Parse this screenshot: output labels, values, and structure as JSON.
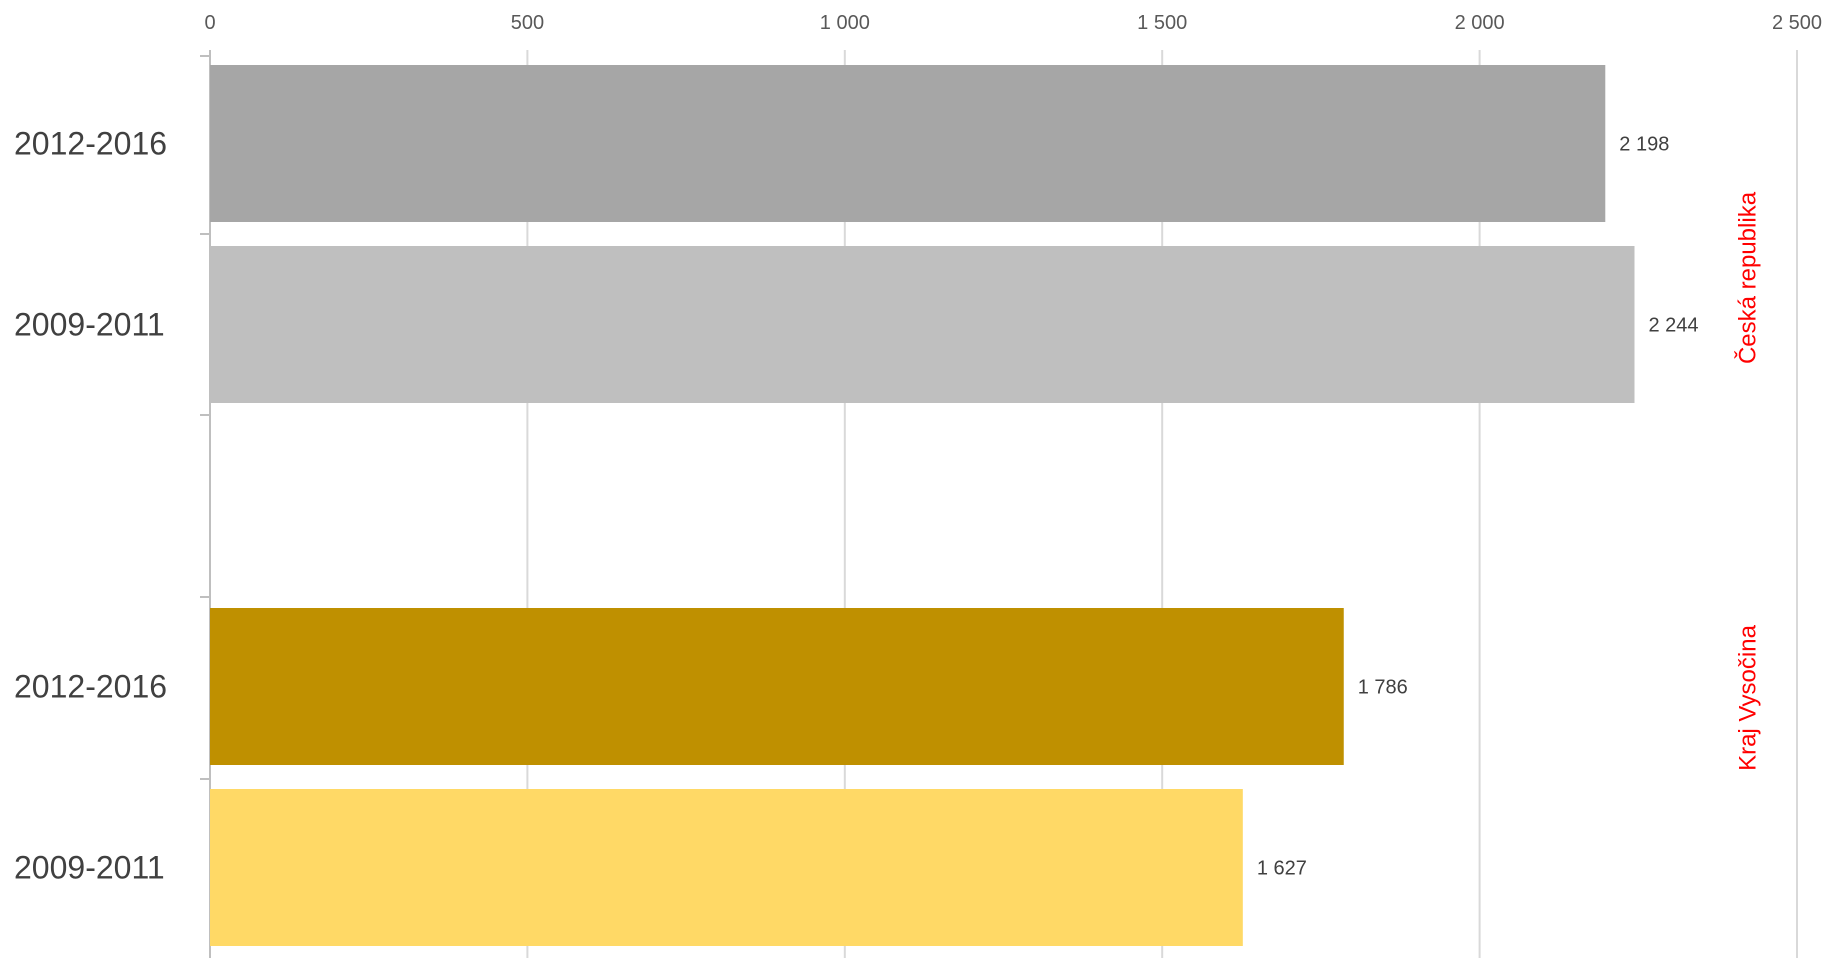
{
  "chart_data": {
    "type": "bar",
    "orientation": "horizontal",
    "xlim": [
      0,
      2500
    ],
    "xticks": [
      0,
      500,
      1000,
      1500,
      2000,
      2500
    ],
    "xtick_labels": [
      "0",
      "500",
      "1 000",
      "1 500",
      "2 000",
      "2 500"
    ],
    "grid": true,
    "groups": [
      {
        "name": "Česká republika",
        "label_color": "#ff0000",
        "bars": [
          {
            "category": "2012-2016",
            "value": 2198,
            "label": "2 198",
            "color": "#a6a6a6"
          },
          {
            "category": "2009-2011",
            "value": 2244,
            "label": "2 244",
            "color": "#bfbfbf"
          }
        ]
      },
      {
        "name": "Kraj Vysočina",
        "label_color": "#ff0000",
        "bars": [
          {
            "category": "2012-2016",
            "value": 1786,
            "label": "1 786",
            "color": "#bf9000"
          },
          {
            "category": "2009-2011",
            "value": 1627,
            "label": "1 627",
            "color": "#ffd966"
          }
        ]
      }
    ]
  }
}
